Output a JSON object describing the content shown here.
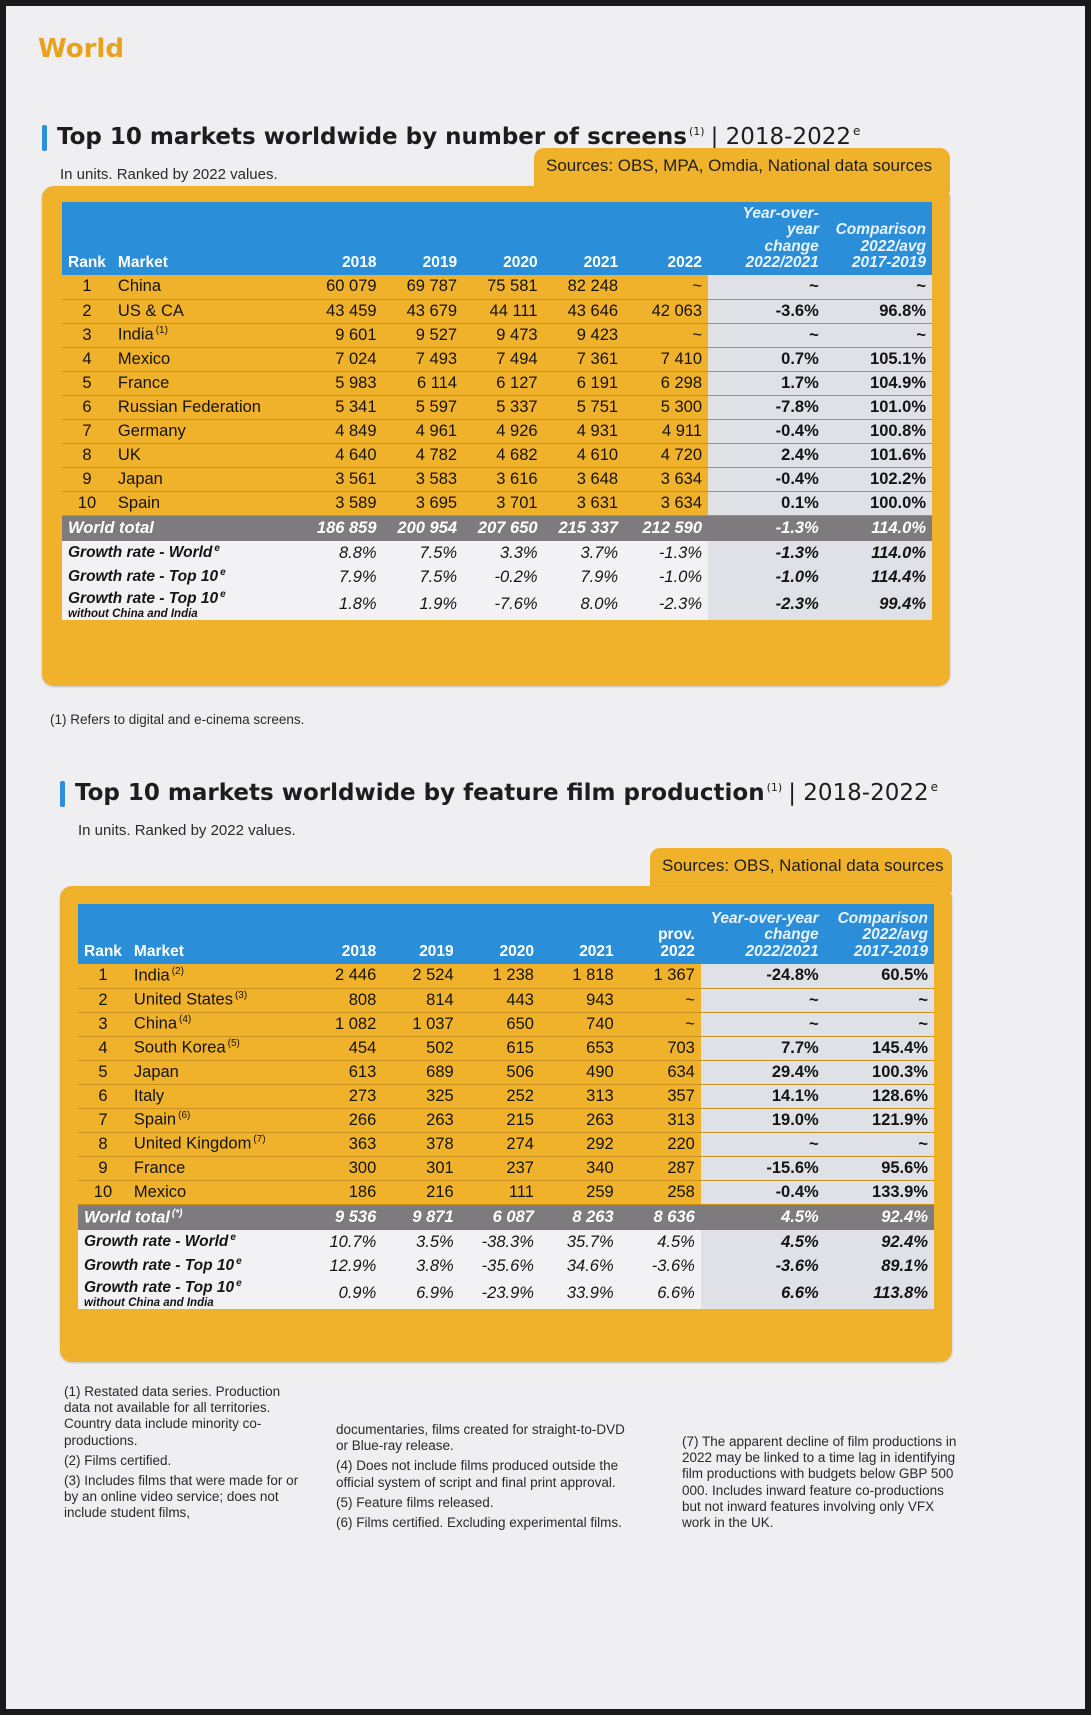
{
  "header": {
    "label": "World"
  },
  "screens": {
    "title": "Top 10 markets worldwide by number of screens",
    "title_note": "(1)",
    "range": "| 2018-2022",
    "range_sup": "e",
    "subtitle": "In units. Ranked by 2022 values.",
    "source": "Sources: OBS, MPA, Omdia, National data sources",
    "columns": {
      "rank": "Rank",
      "market": "Market",
      "y2018": "2018",
      "y2019": "2019",
      "y2020": "2020",
      "y2021": "2021",
      "y2022": "2022",
      "yoy_1": "Year-over-year",
      "yoy_2": "change",
      "yoy_3": "2022/2021",
      "cmp_1": "Comparison",
      "cmp_2": "2022/avg",
      "cmp_3": "2017-2019"
    },
    "rows": [
      {
        "rank": "1",
        "market": "China",
        "note": "",
        "v2018": "60 079",
        "v2019": "69 787",
        "v2020": "75 581",
        "v2021": "82 248",
        "v2022": "~",
        "yoy": "~",
        "cmp": "~"
      },
      {
        "rank": "2",
        "market": "US & CA",
        "note": "",
        "v2018": "43 459",
        "v2019": "43 679",
        "v2020": "44 111",
        "v2021": "43 646",
        "v2022": "42 063",
        "yoy": "-3.6%",
        "cmp": "96.8%"
      },
      {
        "rank": "3",
        "market": "India",
        "note": "(1)",
        "v2018": "9 601",
        "v2019": "9 527",
        "v2020": "9 473",
        "v2021": "9 423",
        "v2022": "~",
        "yoy": "~",
        "cmp": "~"
      },
      {
        "rank": "4",
        "market": "Mexico",
        "note": "",
        "v2018": "7 024",
        "v2019": "7 493",
        "v2020": "7 494",
        "v2021": "7 361",
        "v2022": "7 410",
        "yoy": "0.7%",
        "cmp": "105.1%"
      },
      {
        "rank": "5",
        "market": "France",
        "note": "",
        "v2018": "5 983",
        "v2019": "6 114",
        "v2020": "6 127",
        "v2021": "6 191",
        "v2022": "6 298",
        "yoy": "1.7%",
        "cmp": "104.9%"
      },
      {
        "rank": "6",
        "market": "Russian Federation",
        "note": "",
        "v2018": "5 341",
        "v2019": "5 597",
        "v2020": "5 337",
        "v2021": "5 751",
        "v2022": "5 300",
        "yoy": "-7.8%",
        "cmp": "101.0%"
      },
      {
        "rank": "7",
        "market": "Germany",
        "note": "",
        "v2018": "4 849",
        "v2019": "4 961",
        "v2020": "4 926",
        "v2021": "4 931",
        "v2022": "4 911",
        "yoy": "-0.4%",
        "cmp": "100.8%"
      },
      {
        "rank": "8",
        "market": "UK",
        "note": "",
        "v2018": "4 640",
        "v2019": "4 782",
        "v2020": "4 682",
        "v2021": "4 610",
        "v2022": "4 720",
        "yoy": "2.4%",
        "cmp": "101.6%"
      },
      {
        "rank": "9",
        "market": "Japan",
        "note": "",
        "v2018": "3 561",
        "v2019": "3 583",
        "v2020": "3 616",
        "v2021": "3 648",
        "v2022": "3 634",
        "yoy": "-0.4%",
        "cmp": "102.2%"
      },
      {
        "rank": "10",
        "market": "Spain",
        "note": "",
        "v2018": "3 589",
        "v2019": "3 695",
        "v2020": "3 701",
        "v2021": "3 631",
        "v2022": "3 634",
        "yoy": "0.1%",
        "cmp": "100.0%"
      }
    ],
    "total": {
      "label": "World total",
      "v2018": "186 859",
      "v2019": "200 954",
      "v2020": "207 650",
      "v2021": "215 337",
      "v2022": "212 590",
      "yoy": "-1.3%",
      "cmp": "114.0%"
    },
    "growth": [
      {
        "label": "Growth rate - World",
        "sup": "e",
        "sub": "",
        "v2018": "8.8%",
        "v2019": "7.5%",
        "v2020": "3.3%",
        "v2021": "3.7%",
        "v2022": "-1.3%",
        "yoy": "-1.3%",
        "cmp": "114.0%"
      },
      {
        "label": "Growth rate - Top 10",
        "sup": "e",
        "sub": "",
        "v2018": "7.9%",
        "v2019": "7.5%",
        "v2020": "-0.2%",
        "v2021": "7.9%",
        "v2022": "-1.0%",
        "yoy": "-1.0%",
        "cmp": "114.4%"
      },
      {
        "label": "Growth rate - Top 10",
        "sup": "e",
        "sub": "without China and India",
        "v2018": "1.8%",
        "v2019": "1.9%",
        "v2020": "-7.6%",
        "v2021": "8.0%",
        "v2022": "-2.3%",
        "yoy": "-2.3%",
        "cmp": "99.4%"
      }
    ],
    "footnote": "(1) Refers to digital and e-cinema screens."
  },
  "films": {
    "title": "Top 10 markets worldwide by feature film production",
    "title_note": "(1)",
    "range": "| 2018-2022",
    "range_sup": "e",
    "subtitle": "In units. Ranked by 2022 values.",
    "source": "Sources: OBS, National data sources",
    "columns": {
      "rank": "Rank",
      "market": "Market",
      "y2018": "2018",
      "y2019": "2019",
      "y2020": "2020",
      "y2021": "2021",
      "prov": "prov.",
      "y2022": "2022",
      "yoy_1": "Year-over-year",
      "yoy_2": "change",
      "yoy_3": "2022/2021",
      "cmp_1": "Comparison",
      "cmp_2": "2022/avg",
      "cmp_3": "2017-2019"
    },
    "rows": [
      {
        "rank": "1",
        "market": "India",
        "note": "(2)",
        "v2018": "2 446",
        "v2019": "2 524",
        "v2020": "1 238",
        "v2021": "1 818",
        "v2022": "1 367",
        "yoy": "-24.8%",
        "cmp": "60.5%"
      },
      {
        "rank": "2",
        "market": "United States",
        "note": "(3)",
        "v2018": "808",
        "v2019": "814",
        "v2020": "443",
        "v2021": "943",
        "v2022": "~",
        "yoy": "~",
        "cmp": "~"
      },
      {
        "rank": "3",
        "market": "China",
        "note": "(4)",
        "v2018": "1 082",
        "v2019": "1 037",
        "v2020": "650",
        "v2021": "740",
        "v2022": "~",
        "yoy": "~",
        "cmp": "~"
      },
      {
        "rank": "4",
        "market": "South Korea",
        "note": "(5)",
        "v2018": "454",
        "v2019": "502",
        "v2020": "615",
        "v2021": "653",
        "v2022": "703",
        "yoy": "7.7%",
        "cmp": "145.4%"
      },
      {
        "rank": "5",
        "market": "Japan",
        "note": "",
        "v2018": "613",
        "v2019": "689",
        "v2020": "506",
        "v2021": "490",
        "v2022": "634",
        "yoy": "29.4%",
        "cmp": "100.3%"
      },
      {
        "rank": "6",
        "market": "Italy",
        "note": "",
        "v2018": "273",
        "v2019": "325",
        "v2020": "252",
        "v2021": "313",
        "v2022": "357",
        "yoy": "14.1%",
        "cmp": "128.6%"
      },
      {
        "rank": "7",
        "market": "Spain",
        "note": "(6)",
        "v2018": "266",
        "v2019": "263",
        "v2020": "215",
        "v2021": "263",
        "v2022": "313",
        "yoy": "19.0%",
        "cmp": "121.9%"
      },
      {
        "rank": "8",
        "market": "United Kingdom",
        "note": "(7)",
        "v2018": "363",
        "v2019": "378",
        "v2020": "274",
        "v2021": "292",
        "v2022": "220",
        "yoy": "~",
        "cmp": "~"
      },
      {
        "rank": "9",
        "market": "France",
        "note": "",
        "v2018": "300",
        "v2019": "301",
        "v2020": "237",
        "v2021": "340",
        "v2022": "287",
        "yoy": "-15.6%",
        "cmp": "95.6%"
      },
      {
        "rank": "10",
        "market": "Mexico",
        "note": "",
        "v2018": "186",
        "v2019": "216",
        "v2020": "111",
        "v2021": "259",
        "v2022": "258",
        "yoy": "-0.4%",
        "cmp": "133.9%"
      }
    ],
    "total": {
      "label": "World total",
      "sup": "(*)",
      "v2018": "9 536",
      "v2019": "9 871",
      "v2020": "6 087",
      "v2021": "8 263",
      "v2022": "8 636",
      "yoy": "4.5%",
      "cmp": "92.4%"
    },
    "growth": [
      {
        "label": "Growth rate - World",
        "sup": "e",
        "sub": "",
        "v2018": "10.7%",
        "v2019": "3.5%",
        "v2020": "-38.3%",
        "v2021": "35.7%",
        "v2022": "4.5%",
        "yoy": "4.5%",
        "cmp": "92.4%"
      },
      {
        "label": "Growth rate - Top 10",
        "sup": "e",
        "sub": "",
        "v2018": "12.9%",
        "v2019": "3.8%",
        "v2020": "-35.6%",
        "v2021": "34.6%",
        "v2022": "-3.6%",
        "yoy": "-3.6%",
        "cmp": "89.1%"
      },
      {
        "label": "Growth rate - Top 10",
        "sup": "e",
        "sub": "without China and India",
        "v2018": "0.9%",
        "v2019": "6.9%",
        "v2020": "-23.9%",
        "v2021": "33.9%",
        "v2022": "6.6%",
        "yoy": "6.6%",
        "cmp": "113.8%"
      }
    ],
    "footnotes": {
      "col1": [
        "(1) Restated data series. Production data not available for all territories. Country data include minority co-productions.",
        "(2) Films certified.",
        "(3) Includes films that were made for or by an online video service; does not include student films,"
      ],
      "col2": [
        "documentaries, films created for straight-to-DVD or Blue-ray release.",
        "(4) Does not include films produced outside the official system of script and final print approval.",
        "(5) Feature films released.",
        "(6) Films certified. Excluding experimental films."
      ],
      "col3": [
        "(7) The apparent decline of film productions in 2022 may be linked to a time lag in identifying film productions with budgets below GBP 500 000. Includes inward feature co-productions but not inward features involving only VFX work in the UK."
      ]
    }
  }
}
